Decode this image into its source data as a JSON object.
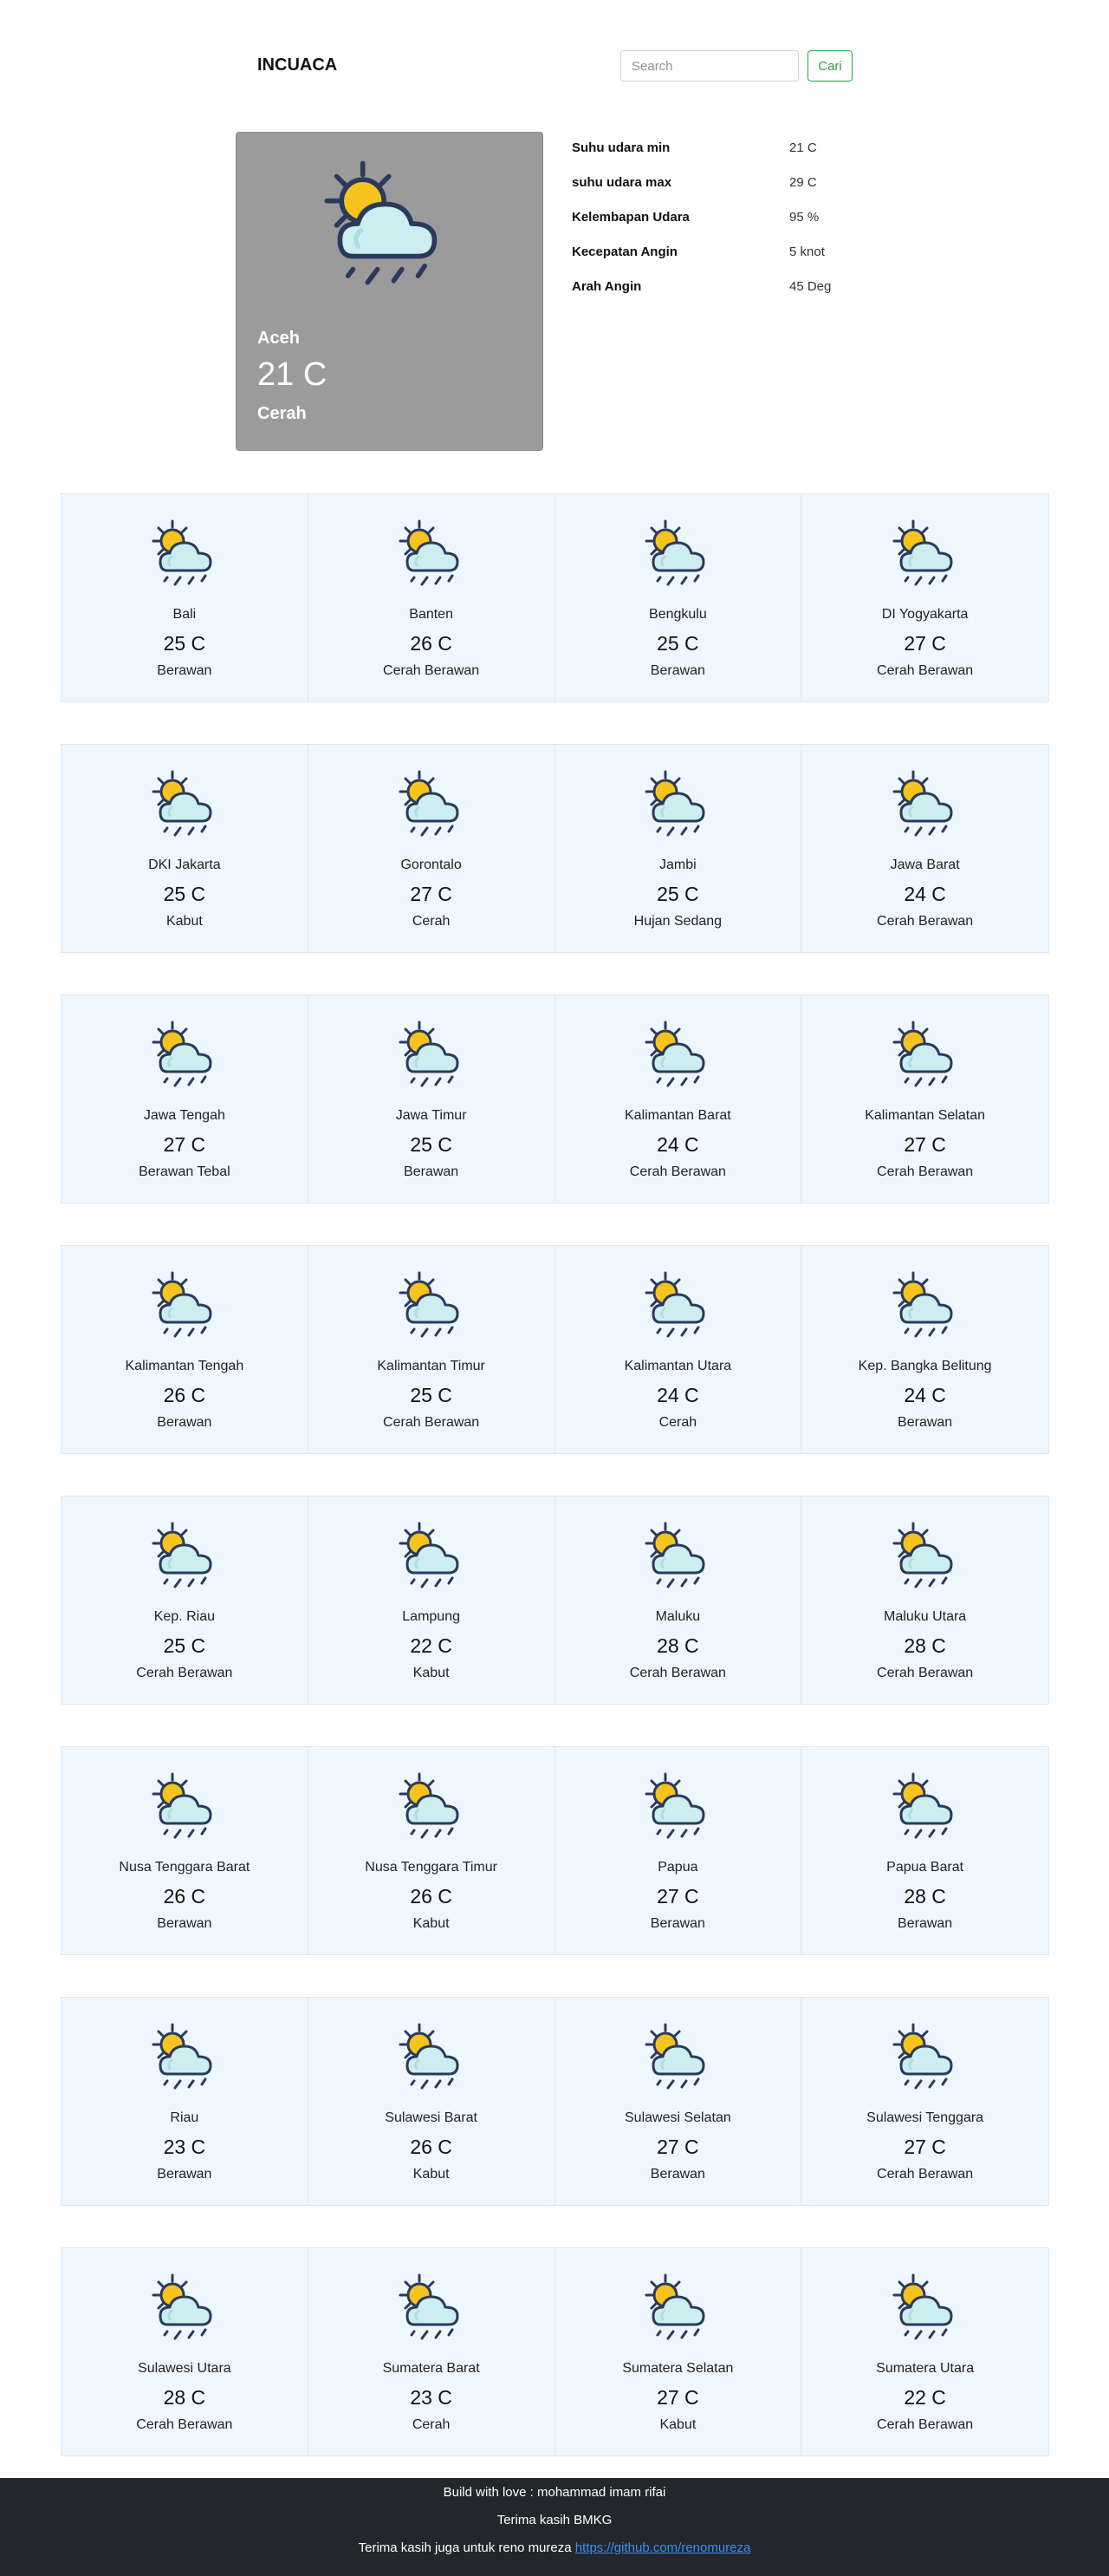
{
  "navbar": {
    "brand": "INCUACA",
    "search_placeholder": "Search",
    "search_button": "Cari"
  },
  "main": {
    "city": "Aceh",
    "temperature": "21 C",
    "condition": "Cerah",
    "icon": "partly-cloudy-rain-icon",
    "details": [
      {
        "label": "Suhu udara min",
        "value": "21 C"
      },
      {
        "label": "suhu udara max",
        "value": "29 C"
      },
      {
        "label": "Kelembapan Udara",
        "value": "95 %"
      },
      {
        "label": "Kecepatan Angin",
        "value": "5 knot"
      },
      {
        "label": "Arah Angin",
        "value": "45 Deg"
      }
    ]
  },
  "colors": {
    "sun": "#f7c31e",
    "cloud": "#cdeef0",
    "outline": "#2b3a5c",
    "card_bg": "#eef7ff",
    "main_card_bg": "#9b9b9b",
    "footer_bg": "#23272b",
    "button_accent": "#28a745"
  },
  "regions": [
    {
      "name": "Bali",
      "temp": "25 C",
      "desc": "Berawan"
    },
    {
      "name": "Banten",
      "temp": "26 C",
      "desc": "Cerah Berawan"
    },
    {
      "name": "Bengkulu",
      "temp": "25 C",
      "desc": "Berawan"
    },
    {
      "name": "DI Yogyakarta",
      "temp": "27 C",
      "desc": "Cerah Berawan"
    },
    {
      "name": "DKI Jakarta",
      "temp": "25 C",
      "desc": "Kabut"
    },
    {
      "name": "Gorontalo",
      "temp": "27 C",
      "desc": "Cerah"
    },
    {
      "name": "Jambi",
      "temp": "25 C",
      "desc": "Hujan Sedang"
    },
    {
      "name": "Jawa Barat",
      "temp": "24 C",
      "desc": "Cerah Berawan"
    },
    {
      "name": "Jawa Tengah",
      "temp": "27 C",
      "desc": "Berawan Tebal"
    },
    {
      "name": "Jawa Timur",
      "temp": "25 C",
      "desc": "Berawan"
    },
    {
      "name": "Kalimantan Barat",
      "temp": "24 C",
      "desc": "Cerah Berawan"
    },
    {
      "name": "Kalimantan Selatan",
      "temp": "27 C",
      "desc": "Cerah Berawan"
    },
    {
      "name": "Kalimantan Tengah",
      "temp": "26 C",
      "desc": "Berawan"
    },
    {
      "name": "Kalimantan Timur",
      "temp": "25 C",
      "desc": "Cerah Berawan"
    },
    {
      "name": "Kalimantan Utara",
      "temp": "24 C",
      "desc": "Cerah"
    },
    {
      "name": "Kep. Bangka Belitung",
      "temp": "24 C",
      "desc": "Berawan"
    },
    {
      "name": "Kep. Riau",
      "temp": "25 C",
      "desc": "Cerah Berawan"
    },
    {
      "name": "Lampung",
      "temp": "22 C",
      "desc": "Kabut"
    },
    {
      "name": "Maluku",
      "temp": "28 C",
      "desc": "Cerah Berawan"
    },
    {
      "name": "Maluku Utara",
      "temp": "28 C",
      "desc": "Cerah Berawan"
    },
    {
      "name": "Nusa Tenggara Barat",
      "temp": "26 C",
      "desc": "Berawan"
    },
    {
      "name": "Nusa Tenggara Timur",
      "temp": "26 C",
      "desc": "Kabut"
    },
    {
      "name": "Papua",
      "temp": "27 C",
      "desc": "Berawan"
    },
    {
      "name": "Papua Barat",
      "temp": "28 C",
      "desc": "Berawan"
    },
    {
      "name": "Riau",
      "temp": "23 C",
      "desc": "Berawan"
    },
    {
      "name": "Sulawesi Barat",
      "temp": "26 C",
      "desc": "Kabut"
    },
    {
      "name": "Sulawesi Selatan",
      "temp": "27 C",
      "desc": "Berawan"
    },
    {
      "name": "Sulawesi Tenggara",
      "temp": "27 C",
      "desc": "Cerah Berawan"
    },
    {
      "name": "Sulawesi Utara",
      "temp": "28 C",
      "desc": "Cerah Berawan"
    },
    {
      "name": "Sumatera Barat",
      "temp": "23 C",
      "desc": "Cerah"
    },
    {
      "name": "Sumatera Selatan",
      "temp": "27 C",
      "desc": "Kabut"
    },
    {
      "name": "Sumatera Utara",
      "temp": "22 C",
      "desc": "Cerah Berawan"
    }
  ],
  "footer": {
    "credit": "Build with love : mohammad imam rifai",
    "thanks": "Terima kasih BMKG",
    "thanks_also": "Terima kasih juga untuk reno mureza",
    "link_text": "https://github.com/renomureza"
  }
}
